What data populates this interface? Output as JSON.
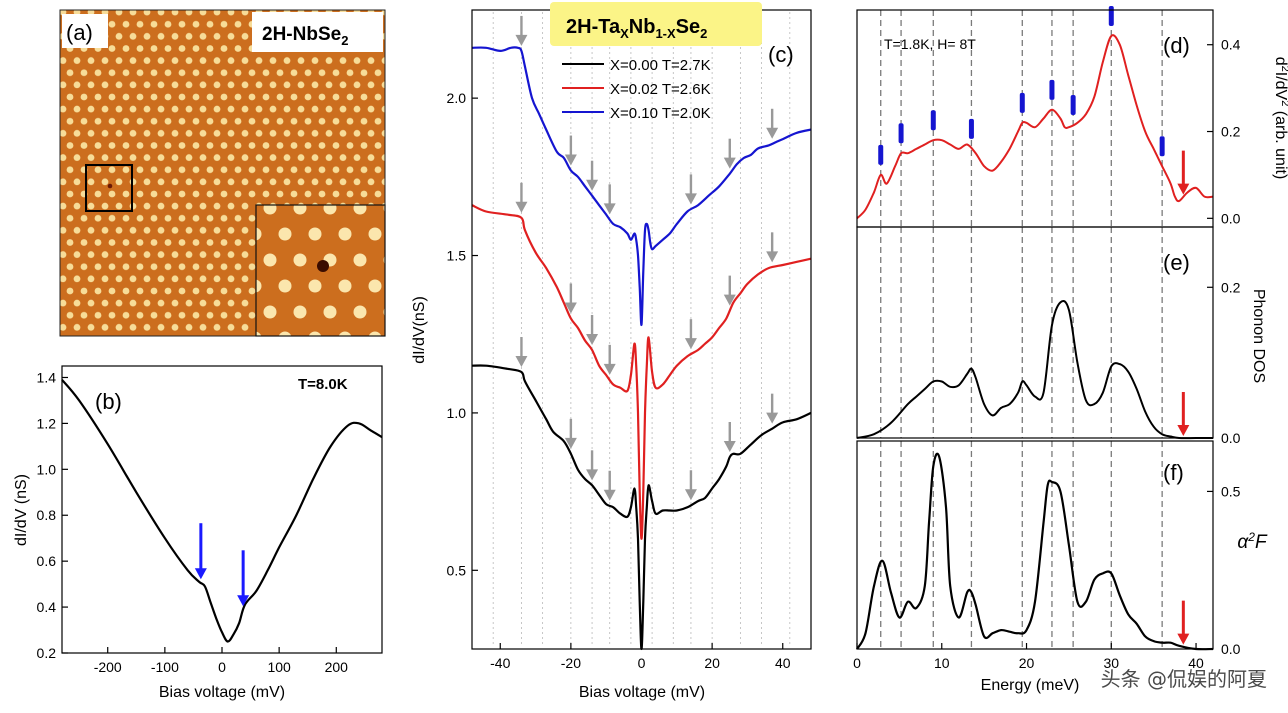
{
  "chart_data": [
    {
      "panel": "a",
      "type": "image",
      "panel_label": "(a)",
      "title": "2H-NbSe",
      "title_sub": "2",
      "features": [
        "STM topography with a triangular atomic lattice",
        "single defect marked by a square box",
        "zoomed inset at lower right"
      ]
    },
    {
      "panel": "b",
      "type": "line",
      "panel_label": "(b)",
      "annotation": "T=8.0K",
      "xlabel": "Bias voltage (mV)",
      "ylabel": "dI/dV (nS)",
      "xlim": [
        -280,
        280
      ],
      "ylim": [
        0.2,
        1.45
      ],
      "xticks": [
        -200,
        -100,
        0,
        100,
        200
      ],
      "yticks": [
        0.2,
        0.4,
        0.6,
        0.8,
        1.0,
        1.2,
        1.4
      ],
      "x": [
        -280,
        -250,
        -200,
        -150,
        -100,
        -60,
        -40,
        -30,
        -20,
        -10,
        0,
        10,
        20,
        30,
        40,
        60,
        80,
        100,
        130,
        160,
        190,
        220,
        240,
        260,
        280
      ],
      "y": [
        1.39,
        1.3,
        1.11,
        0.9,
        0.7,
        0.56,
        0.51,
        0.49,
        0.42,
        0.35,
        0.29,
        0.25,
        0.28,
        0.33,
        0.41,
        0.47,
        0.56,
        0.66,
        0.8,
        0.96,
        1.1,
        1.19,
        1.2,
        1.17,
        1.14
      ],
      "arrows_mV": [
        -37,
        37
      ],
      "arrow_color": "#1a1aff"
    },
    {
      "panel": "c",
      "type": "line",
      "panel_label": "(c)",
      "title_main": "2H-Ta",
      "title_x": "X",
      "title_mid": "Nb",
      "title_1x": "1-X",
      "title_end": "Se",
      "title_2": "2",
      "xlabel": "Bias voltage (mV)",
      "ylabel": "dI/dV(nS)",
      "xlim": [
        -48,
        48
      ],
      "ylim": [
        0.25,
        2.28
      ],
      "xticks": [
        -40,
        -20,
        0,
        20,
        40
      ],
      "yticks": [
        0.5,
        1.0,
        1.5,
        2.0
      ],
      "gridlines_mV": [
        -42,
        -34,
        -28,
        -20,
        -14,
        -9,
        -3,
        3,
        9,
        14,
        20,
        28,
        34,
        42
      ],
      "series": [
        {
          "name": "X=0.00 T=2.7K",
          "color": "#000000",
          "x": [
            -48,
            -44,
            -38,
            -34,
            -33,
            -30,
            -27,
            -25,
            -22,
            -20,
            -18,
            -16,
            -14,
            -12,
            -10,
            -8,
            -6,
            -4,
            -3,
            -2,
            -1.5,
            -1,
            -0.5,
            0,
            0.5,
            1,
            1.5,
            2,
            3,
            4,
            6,
            8,
            10,
            13,
            16,
            18,
            20,
            22,
            24,
            25,
            26,
            28,
            31,
            34,
            37,
            40,
            44,
            48
          ],
          "y": [
            1.15,
            1.15,
            1.14,
            1.13,
            1.1,
            1.04,
            0.98,
            0.94,
            0.91,
            0.87,
            0.82,
            0.79,
            0.77,
            0.74,
            0.71,
            0.7,
            0.68,
            0.67,
            0.7,
            0.76,
            0.7,
            0.6,
            0.4,
            0.25,
            0.4,
            0.6,
            0.7,
            0.77,
            0.72,
            0.68,
            0.69,
            0.69,
            0.69,
            0.7,
            0.72,
            0.73,
            0.76,
            0.79,
            0.83,
            0.86,
            0.87,
            0.87,
            0.9,
            0.93,
            0.95,
            0.97,
            0.98,
            1.0
          ]
        },
        {
          "name": "X=0.02 T=2.6K",
          "color": "#e02020",
          "x": [
            -48,
            -44,
            -38,
            -34,
            -33,
            -30,
            -27,
            -24,
            -22,
            -20,
            -18,
            -16,
            -14,
            -12,
            -10,
            -8,
            -6,
            -4,
            -3,
            -2,
            -1.5,
            -1,
            -0.5,
            0,
            0.5,
            1,
            1.5,
            2,
            3,
            4,
            6,
            8,
            10,
            13,
            16,
            18,
            20,
            22,
            24,
            26,
            28,
            30,
            33,
            36,
            40,
            44,
            48
          ],
          "y": [
            1.66,
            1.64,
            1.63,
            1.62,
            1.58,
            1.51,
            1.46,
            1.4,
            1.35,
            1.3,
            1.27,
            1.23,
            1.2,
            1.15,
            1.12,
            1.09,
            1.08,
            1.07,
            1.12,
            1.22,
            1.15,
            1.0,
            0.75,
            0.6,
            0.75,
            1.0,
            1.15,
            1.24,
            1.13,
            1.08,
            1.09,
            1.12,
            1.15,
            1.18,
            1.2,
            1.22,
            1.24,
            1.27,
            1.3,
            1.35,
            1.38,
            1.41,
            1.44,
            1.46,
            1.47,
            1.48,
            1.49
          ]
        },
        {
          "name": "X=0.10 T=2.0K",
          "color": "#1515d0",
          "x": [
            -48,
            -44,
            -40,
            -37,
            -35,
            -34,
            -33,
            -31,
            -29,
            -27,
            -24,
            -22,
            -20,
            -18,
            -16,
            -14,
            -12,
            -10,
            -8,
            -6,
            -4,
            -3,
            -2,
            -1.5,
            -1,
            -0.5,
            0,
            0.5,
            1,
            1.5,
            2,
            2.5,
            3,
            4,
            6,
            8,
            10,
            13,
            16,
            19,
            22,
            25,
            27,
            29,
            31,
            33,
            36,
            38,
            40,
            44,
            48
          ],
          "y": [
            2.16,
            2.16,
            2.15,
            2.16,
            2.16,
            2.15,
            2.1,
            2.0,
            1.95,
            1.9,
            1.83,
            1.81,
            1.77,
            1.75,
            1.72,
            1.69,
            1.66,
            1.63,
            1.6,
            1.59,
            1.57,
            1.55,
            1.57,
            1.55,
            1.5,
            1.4,
            1.28,
            1.45,
            1.58,
            1.6,
            1.58,
            1.54,
            1.52,
            1.53,
            1.55,
            1.57,
            1.6,
            1.64,
            1.66,
            1.69,
            1.72,
            1.76,
            1.79,
            1.81,
            1.82,
            1.84,
            1.85,
            1.86,
            1.87,
            1.89,
            1.9
          ]
        }
      ],
      "arrows": {
        "color": "#999999",
        "black": [
          -34,
          -20,
          -14,
          -9,
          14,
          25,
          37
        ],
        "red": [
          -34,
          -20,
          -14,
          -9,
          14,
          25,
          37
        ],
        "blue": [
          -34,
          -20,
          -14,
          -9,
          14,
          25,
          37
        ]
      }
    },
    {
      "panel": "d",
      "type": "line",
      "panel_label": "(d)",
      "annotation": "T=1.8K, H= 8T",
      "ylabel": "d²I/dV² (arb. unit)",
      "ylabel_parts": [
        "d",
        "2",
        "I/dV",
        "2",
        " (arb. unit)"
      ],
      "xlim": [
        0,
        42
      ],
      "ylim": [
        -0.02,
        0.48
      ],
      "yticks": [
        0.0,
        0.2,
        0.4
      ],
      "ytick_labels": [
        "0.0",
        "0.2",
        "0.4"
      ],
      "color": "#e02020",
      "x": [
        0,
        1,
        2,
        2.8,
        3.5,
        4.5,
        5.2,
        6,
        7,
        8,
        9,
        10,
        11,
        12,
        13,
        14,
        15,
        16,
        17,
        18,
        19,
        19.5,
        20,
        21,
        22,
        23,
        24,
        24.5,
        25,
        26,
        27,
        28,
        29,
        30,
        31,
        32,
        33,
        34,
        35,
        36,
        37,
        37.5,
        38,
        39,
        40,
        41,
        42
      ],
      "y": [
        0.0,
        0.02,
        0.06,
        0.1,
        0.08,
        0.12,
        0.15,
        0.15,
        0.16,
        0.17,
        0.18,
        0.18,
        0.17,
        0.16,
        0.17,
        0.15,
        0.12,
        0.11,
        0.13,
        0.16,
        0.2,
        0.22,
        0.22,
        0.21,
        0.23,
        0.25,
        0.23,
        0.21,
        0.21,
        0.22,
        0.24,
        0.28,
        0.36,
        0.42,
        0.4,
        0.33,
        0.26,
        0.2,
        0.16,
        0.12,
        0.08,
        0.05,
        0.04,
        0.06,
        0.07,
        0.05,
        0.05
      ],
      "blue_marks_meV": [
        2.8,
        5.2,
        9.0,
        13.5,
        19.5,
        23.0,
        25.5,
        30.0,
        36.0
      ],
      "red_arrow_meV": [
        38.5
      ]
    },
    {
      "panel": "e",
      "type": "line",
      "panel_label": "(e)",
      "ylabel": "Phonon DOS",
      "xlim": [
        0,
        42
      ],
      "ylim": [
        0.0,
        0.28
      ],
      "yticks": [
        0.0,
        0.2
      ],
      "ytick_labels": [
        "0.0",
        "0.2"
      ],
      "color": "#000000",
      "x": [
        0,
        2,
        4,
        6,
        7,
        8,
        9,
        10,
        11,
        12,
        13,
        13.5,
        14,
        15,
        16,
        17,
        18,
        19,
        19.5,
        20,
        21,
        22,
        23,
        24,
        25,
        26,
        27,
        28,
        29,
        30,
        31,
        32,
        33,
        34,
        35,
        36,
        37,
        38,
        40,
        42
      ],
      "y": [
        0.0,
        0.005,
        0.02,
        0.045,
        0.055,
        0.065,
        0.075,
        0.075,
        0.068,
        0.07,
        0.085,
        0.092,
        0.08,
        0.045,
        0.03,
        0.04,
        0.045,
        0.06,
        0.075,
        0.07,
        0.055,
        0.06,
        0.15,
        0.18,
        0.17,
        0.1,
        0.05,
        0.045,
        0.06,
        0.095,
        0.098,
        0.088,
        0.065,
        0.035,
        0.015,
        0.005,
        0.002,
        0.0,
        0.0,
        0.0
      ],
      "red_arrow_meV": [
        38.5
      ]
    },
    {
      "panel": "f",
      "type": "line",
      "panel_label": "(f)",
      "ylabel": "α²F",
      "ylabel_parts": [
        "α",
        "2",
        "F"
      ],
      "xlabel": "Energy (meV)",
      "xlim": [
        0,
        42
      ],
      "ylim": [
        0.0,
        0.66
      ],
      "xticks": [
        0,
        10,
        20,
        30,
        40
      ],
      "yticks": [
        0.0,
        0.5
      ],
      "ytick_labels": [
        "0.0",
        "0.5"
      ],
      "color": "#000000",
      "x": [
        0,
        1,
        2,
        3,
        4,
        5,
        6,
        7,
        8,
        8.5,
        9,
        9.7,
        10.5,
        11,
        12,
        13,
        13.5,
        14,
        15,
        16,
        17,
        18,
        19,
        20,
        21,
        22,
        22.5,
        23,
        24,
        25,
        26,
        27,
        28,
        29,
        30,
        31,
        32,
        33,
        34,
        35,
        36,
        37,
        38,
        40,
        42
      ],
      "y": [
        0.0,
        0.05,
        0.2,
        0.28,
        0.18,
        0.1,
        0.15,
        0.13,
        0.2,
        0.4,
        0.58,
        0.61,
        0.45,
        0.2,
        0.1,
        0.18,
        0.18,
        0.14,
        0.04,
        0.05,
        0.06,
        0.055,
        0.05,
        0.06,
        0.15,
        0.4,
        0.52,
        0.53,
        0.5,
        0.33,
        0.15,
        0.15,
        0.22,
        0.24,
        0.24,
        0.17,
        0.11,
        0.08,
        0.04,
        0.025,
        0.02,
        0.02,
        0.01,
        0.0,
        0.0
      ],
      "dashed_lines_meV": [
        2.8,
        5.2,
        9.0,
        13.5,
        19.5,
        23.0,
        25.5,
        30.0,
        36.0
      ],
      "red_arrow_meV": [
        38.5
      ]
    }
  ],
  "watermark": "头条 @侃娱的阿夏"
}
